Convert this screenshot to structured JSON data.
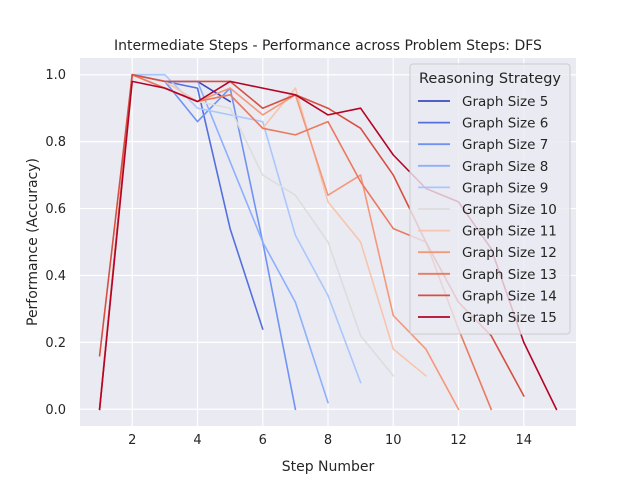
{
  "chart_data": {
    "type": "line",
    "title": "Intermediate Steps - Performance across Problem Steps: DFS",
    "xlabel": "Step Number",
    "ylabel": "Performance (Accuracy)",
    "xlim": [
      0.4,
      15.6
    ],
    "ylim": [
      -0.05,
      1.05
    ],
    "xticks": [
      2,
      4,
      6,
      8,
      10,
      12,
      14
    ],
    "yticks": [
      0.0,
      0.2,
      0.4,
      0.6,
      0.8,
      1.0
    ],
    "xtick_labels": [
      "2",
      "4",
      "6",
      "8",
      "10",
      "12",
      "14"
    ],
    "ytick_labels": [
      "0.0",
      "0.2",
      "0.4",
      "0.6",
      "0.8",
      "1.0"
    ],
    "grid": true,
    "legend_title": "Reasoning Strategy",
    "legend_position": "top-right",
    "series": [
      {
        "name": "Graph Size 5",
        "color": "#3b4cc0",
        "x": [
          1,
          2,
          3,
          4,
          5
        ],
        "values": [
          0.0,
          1.0,
          0.98,
          0.98,
          0.92
        ]
      },
      {
        "name": "Graph Size 6",
        "color": "#5470de",
        "x": [
          1,
          2,
          3,
          4,
          5,
          6
        ],
        "values": [
          0.0,
          1.0,
          0.98,
          0.96,
          0.54,
          0.24
        ]
      },
      {
        "name": "Graph Size 7",
        "color": "#7093f3",
        "x": [
          1,
          2,
          3,
          4,
          5,
          6,
          7
        ],
        "values": [
          0.0,
          1.0,
          0.98,
          0.86,
          0.96,
          0.5,
          0.0
        ]
      },
      {
        "name": "Graph Size 8",
        "color": "#8db0fe",
        "x": [
          1,
          2,
          3,
          4,
          5,
          6,
          7,
          8
        ],
        "values": [
          0.0,
          1.0,
          0.98,
          0.98,
          0.74,
          0.5,
          0.32,
          0.02
        ]
      },
      {
        "name": "Graph Size 9",
        "color": "#aac7fd",
        "x": [
          1,
          2,
          3,
          4,
          5,
          6,
          7,
          8,
          9
        ],
        "values": [
          0.0,
          1.0,
          1.0,
          0.9,
          0.88,
          0.86,
          0.52,
          0.34,
          0.08
        ]
      },
      {
        "name": "Graph Size 10",
        "color": "#dddddd",
        "x": [
          1,
          2,
          3,
          4,
          5,
          6,
          7,
          8,
          9,
          10
        ],
        "values": [
          0.0,
          1.0,
          0.96,
          0.92,
          0.9,
          0.7,
          0.64,
          0.5,
          0.22,
          0.1
        ]
      },
      {
        "name": "Graph Size 11",
        "color": "#f7c5ad",
        "x": [
          1,
          2,
          3,
          4,
          5,
          6,
          7,
          8,
          9,
          10,
          11
        ],
        "values": [
          0.0,
          1.0,
          0.98,
          0.92,
          0.94,
          0.84,
          0.96,
          0.62,
          0.5,
          0.18,
          0.1
        ]
      },
      {
        "name": "Graph Size 12",
        "color": "#f4987a",
        "x": [
          1,
          2,
          3,
          4,
          5,
          6,
          7,
          8,
          9,
          10,
          11,
          12
        ],
        "values": [
          0.0,
          1.0,
          0.96,
          0.92,
          0.96,
          0.88,
          0.94,
          0.64,
          0.7,
          0.28,
          0.18,
          0.0
        ]
      },
      {
        "name": "Graph Size 13",
        "color": "#e97a5f",
        "x": [
          1,
          2,
          3,
          4,
          5,
          6,
          7,
          8,
          9,
          10,
          11,
          12,
          13
        ],
        "values": [
          0.0,
          1.0,
          0.96,
          0.92,
          0.94,
          0.84,
          0.82,
          0.86,
          0.68,
          0.54,
          0.5,
          0.24,
          0.0
        ]
      },
      {
        "name": "Graph Size 14",
        "color": "#d55042",
        "x": [
          1,
          2,
          3,
          4,
          5,
          6,
          7,
          8,
          9,
          10,
          11,
          12,
          13,
          14
        ],
        "values": [
          0.16,
          1.0,
          0.98,
          0.98,
          0.98,
          0.9,
          0.94,
          0.9,
          0.84,
          0.7,
          0.5,
          0.32,
          0.22,
          0.04
        ]
      },
      {
        "name": "Graph Size 15",
        "color": "#b40426",
        "x": [
          1,
          2,
          3,
          4,
          5,
          6,
          7,
          8,
          9,
          10,
          11,
          12,
          13,
          14,
          15
        ],
        "values": [
          0.0,
          0.98,
          0.96,
          0.92,
          0.98,
          0.96,
          0.94,
          0.88,
          0.9,
          0.76,
          0.66,
          0.62,
          0.48,
          0.2,
          0.0
        ]
      }
    ]
  }
}
